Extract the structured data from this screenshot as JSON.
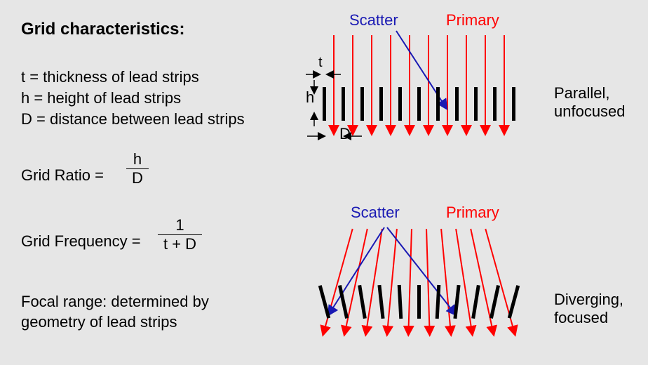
{
  "title": "Grid characteristics:",
  "definitions": {
    "t": "t = thickness of lead strips",
    "h": "h = height of lead strips",
    "D": "D = distance between lead strips"
  },
  "ratio_label": "Grid Ratio =",
  "ratio": {
    "num": "h",
    "den": "D"
  },
  "freq_label": "Grid Frequency =",
  "freq": {
    "num": "1",
    "den": "t + D"
  },
  "focal_range": "Focal range: determined by\ngeometry of lead strips",
  "top_diagram": {
    "scatter_label": "Scatter",
    "primary_label": "Primary",
    "caption_line1": "Parallel,",
    "caption_line2": "unfocused",
    "dim_t": "t",
    "dim_h": "h",
    "dim_D": "D"
  },
  "bottom_diagram": {
    "scatter_label": "Scatter",
    "primary_label": "Primary",
    "caption_line1": "Diverging,",
    "caption_line2": "focused"
  },
  "style": {
    "text_color": "#000000",
    "scatter_color": "#1919b3",
    "primary_color": "#ff0000",
    "strip_color": "#000000",
    "background": "#e6e6e6",
    "font_family": "Arial, sans-serif",
    "title_fontsize": 24,
    "body_fontsize": 22,
    "arrow_stroke_width": 2,
    "strip_width": 5,
    "strip_height": 48,
    "strip_count": 11,
    "strip_spacing": 27
  }
}
